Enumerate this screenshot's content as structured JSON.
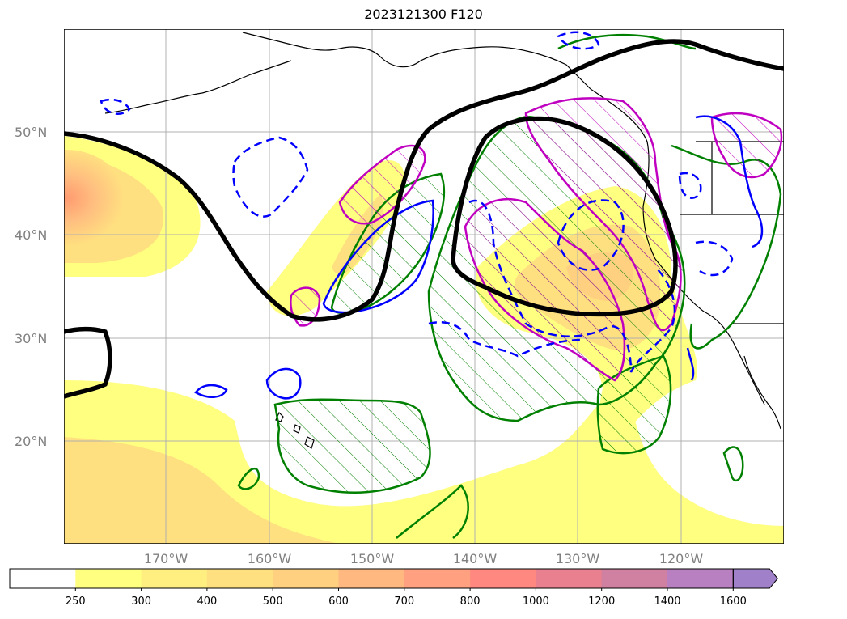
{
  "title": "2023121300 F120",
  "map": {
    "lat_labels": [
      "50°N",
      "40°N",
      "30°N",
      "20°N"
    ],
    "lon_labels": [
      "170°W",
      "160°W",
      "150°W",
      "140°W",
      "130°W",
      "120°W"
    ]
  },
  "colorbar": {
    "levels": [
      "250",
      "300",
      "400",
      "500",
      "600",
      "700",
      "800",
      "1000",
      "1200",
      "1400",
      "1600"
    ],
    "colors": [
      "#ffffff",
      "#ffff80",
      "#ffee80",
      "#ffe080",
      "#ffd080",
      "#ffb880",
      "#ffa080",
      "#ff8880",
      "#e88090",
      "#d080a0",
      "#b880c0",
      "#a080c8"
    ],
    "extend": "max"
  },
  "colors": {
    "fill_low": "#ffff80",
    "fill_mid": "#ffe080",
    "fill_high": "#ff9a70",
    "jet_contour": "#000000",
    "green_contour": "#008000",
    "magenta_contour": "#c000c0",
    "blue_contour": "#0000ff",
    "coastline": "#000000",
    "grid": "#b0b0b0"
  }
}
